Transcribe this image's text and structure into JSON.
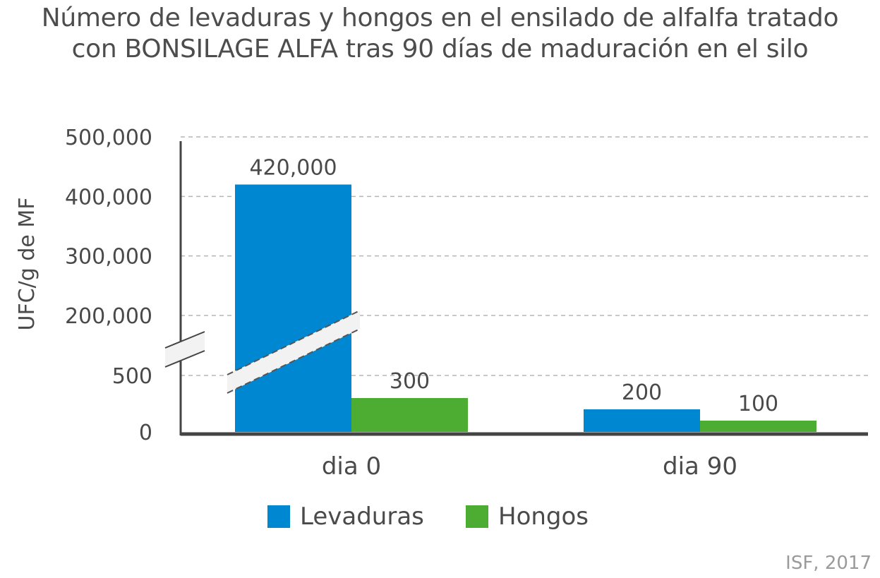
{
  "chart_data": {
    "type": "bar",
    "title_lines": [
      "Número de levaduras y hongos en el ensilado de alfalfa tratado",
      "con BONSILAGE ALFA tras 90 días de maduración en el silo"
    ],
    "ylabel": "UFC/g de MF",
    "xlabel": "",
    "categories": [
      "dia 0",
      "dia 90"
    ],
    "series": [
      {
        "name": "Levaduras",
        "color": "#0087d1",
        "values": [
          420000,
          200
        ],
        "labels": [
          "420,000",
          "200"
        ]
      },
      {
        "name": "Hongos",
        "color": "#4cad32",
        "values": [
          300,
          100
        ],
        "labels": [
          "300",
          "100"
        ]
      }
    ],
    "axis_break": true,
    "lower_segment": {
      "range": [
        0,
        500
      ],
      "ticks": [
        0,
        500
      ],
      "tick_labels": [
        "0",
        "500"
      ]
    },
    "upper_segment": {
      "range": [
        100000,
        500000
      ],
      "ticks": [
        200000,
        300000,
        400000,
        500000
      ],
      "tick_labels": [
        "200,000",
        "300,000",
        "400,000",
        "500,000"
      ]
    },
    "grid": "dashed horizontal",
    "legend_position": "bottom-center",
    "source": "ISF, 2017"
  }
}
